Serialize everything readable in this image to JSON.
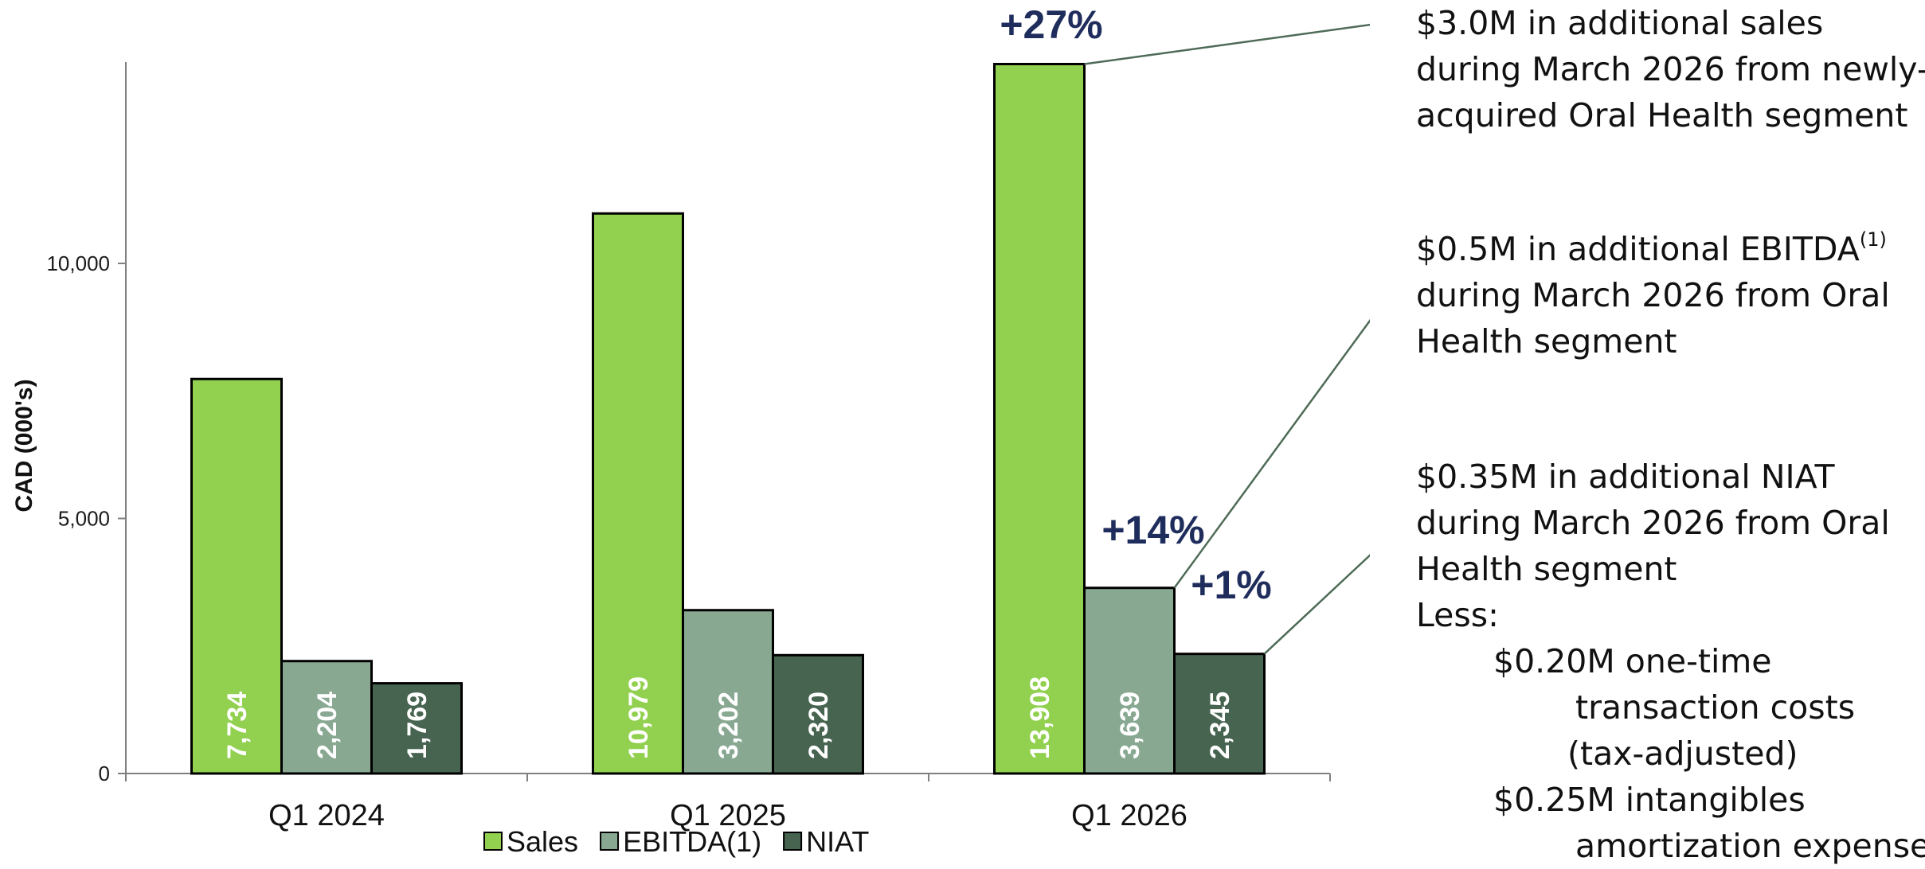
{
  "chart_data": {
    "type": "bar",
    "categories": [
      "Q1 2024",
      "Q1 2025",
      "Q1 2026"
    ],
    "series": [
      {
        "name": "Sales",
        "values": [
          7734,
          10979,
          13908
        ],
        "labels": [
          "7,734",
          "10,979",
          "13,908"
        ],
        "color": "#92d050"
      },
      {
        "name": "EBITDA(1)",
        "values": [
          2204,
          3202,
          3639
        ],
        "labels": [
          "2,204",
          "3,202",
          "3,639"
        ],
        "color": "#88a892"
      },
      {
        "name": "NIAT",
        "values": [
          1769,
          2320,
          2345
        ],
        "labels": [
          "1,769",
          "2,320",
          "2,345"
        ],
        "color": "#476451"
      }
    ],
    "ylabel": "CAD (000's)",
    "xlabel": "",
    "ylim": [
      0,
      14000
    ],
    "yticks": [
      0,
      5000,
      10000
    ],
    "ytick_labels": [
      "0",
      "5,000",
      "10,000"
    ],
    "legend_position": "bottom",
    "grid": false,
    "growth_annotations": [
      "+27%",
      "+14%",
      "+1%"
    ]
  },
  "notes": {
    "sales": {
      "lines": [
        "$3.0M in additional sales",
        "during March 2026 from newly-",
        "acquired Oral Health segment"
      ]
    },
    "ebitda": {
      "line1": "$0.5M in additional EBITDA",
      "superscript": "(1)",
      "lines_rest": [
        "during March 2026 from Oral",
        "Health segment"
      ]
    },
    "niat": {
      "lines": [
        "$0.35M in additional NIAT",
        "during March 2026 from Oral",
        "Health segment"
      ],
      "less_label": "Less:",
      "item1": "$0.20M one-time",
      "item1_cont": [
        "transaction costs",
        "(tax-adjusted)"
      ],
      "item2": "$0.25M intangibles",
      "item2_cont": "amortization expense"
    }
  },
  "colors": {
    "growth_text": "#1f2d5c",
    "arrow": "#4e6b57",
    "axis": "#7f7f7f"
  }
}
